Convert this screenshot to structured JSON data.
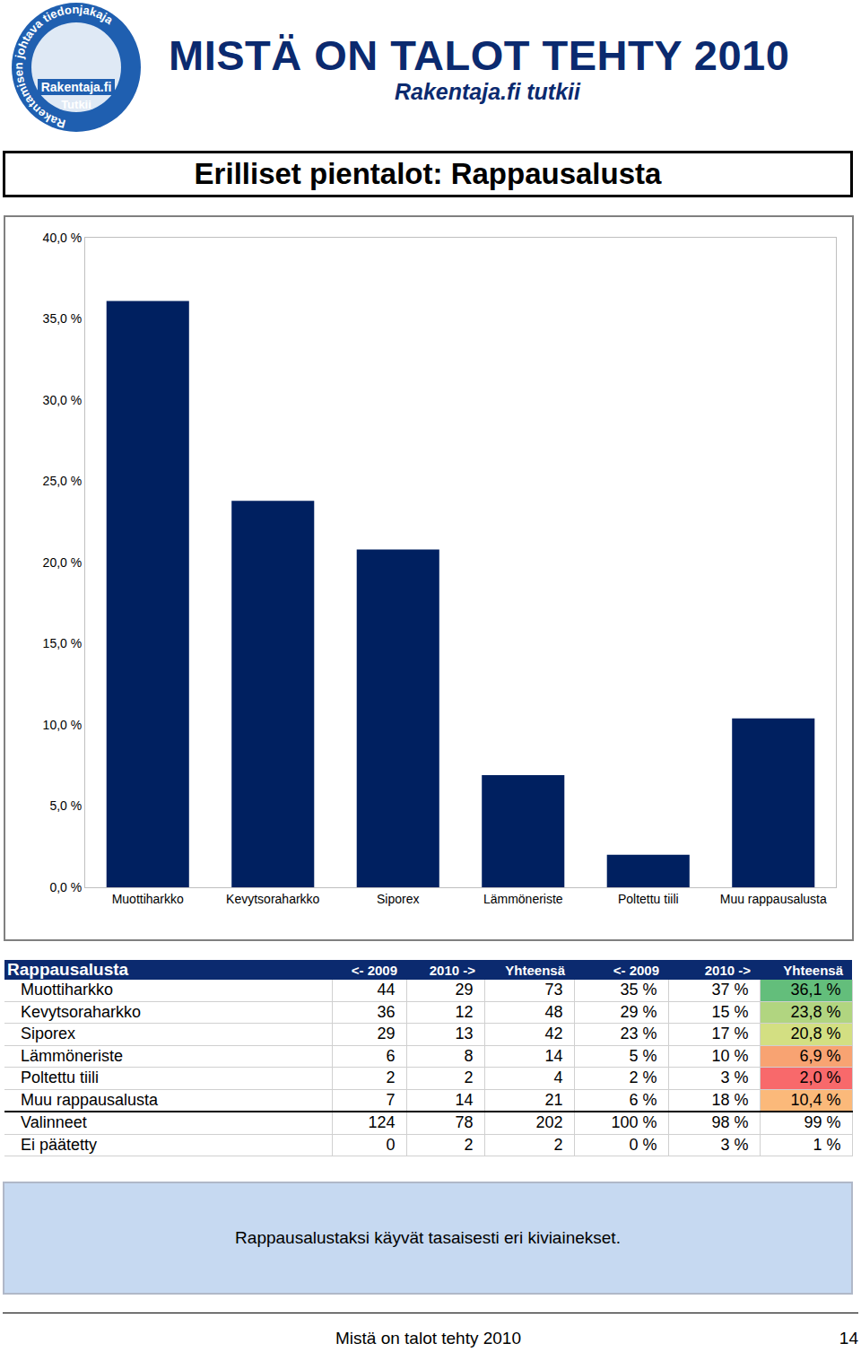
{
  "header": {
    "title": "MISTÄ ON TALOT TEHTY 2010",
    "subtitle": "Rakentaja.fi tutkii",
    "logo": {
      "ring": "Rakentamisen johtava tiedonjakaja",
      "name": "Rakentaja.fi",
      "tag": "Tutkii"
    }
  },
  "chart_data": {
    "type": "bar",
    "title": "Erilliset pientalot: Rappausalusta",
    "categories": [
      "Muottiharkko",
      "Kevytsoraharkko",
      "Siporex",
      "Lämmöneriste",
      "Poltettu tiili",
      "Muu rappausalusta"
    ],
    "values": [
      36.1,
      23.8,
      20.8,
      6.9,
      2.0,
      10.4
    ],
    "color": "#002060",
    "ylim": [
      0,
      40
    ],
    "yticks": [
      {
        "value": 0,
        "label": "0,0 %"
      },
      {
        "value": 5,
        "label": "5,0 %"
      },
      {
        "value": 10,
        "label": "10,0 %"
      },
      {
        "value": 15,
        "label": "15,0 %"
      },
      {
        "value": 20,
        "label": "20,0 %"
      },
      {
        "value": 25,
        "label": "25,0 %"
      },
      {
        "value": 30,
        "label": "30,0 %"
      },
      {
        "value": 35,
        "label": "35,0 %"
      },
      {
        "value": 40,
        "label": "40,0 %"
      }
    ],
    "grid": false
  },
  "table": {
    "header": [
      "Rappausalusta",
      "<- 2009",
      "2010 ->",
      "Yhteensä",
      "<- 2009",
      "2010 ->",
      "Yhteensä"
    ],
    "rows": [
      [
        "Muottiharkko",
        "44",
        "29",
        "73",
        "35 %",
        "37 %",
        "36,1 %"
      ],
      [
        "Kevytsoraharkko",
        "36",
        "12",
        "48",
        "29 %",
        "15 %",
        "23,8 %"
      ],
      [
        "Siporex",
        "29",
        "13",
        "42",
        "23 %",
        "17 %",
        "20,8 %"
      ],
      [
        "Lämmöneriste",
        "6",
        "8",
        "14",
        "5 %",
        "10 %",
        "6,9 %"
      ],
      [
        "Poltettu tiili",
        "2",
        "2",
        "4",
        "2 %",
        "3 %",
        "2,0 %"
      ],
      [
        "Muu rappausalusta",
        "7",
        "14",
        "21",
        "6 %",
        "18 %",
        "10,4 %"
      ],
      [
        "Valinneet",
        "124",
        "78",
        "202",
        "100 %",
        "98 %",
        "99 %"
      ],
      [
        "Ei päätetty",
        "0",
        "2",
        "2",
        "0 %",
        "3 %",
        "1 %"
      ]
    ]
  },
  "note": "Rappausalustaksi käyvät tasaisesti eri kiviainekset.",
  "footer": {
    "text": "Mistä on talot tehty 2010",
    "page": "14"
  }
}
